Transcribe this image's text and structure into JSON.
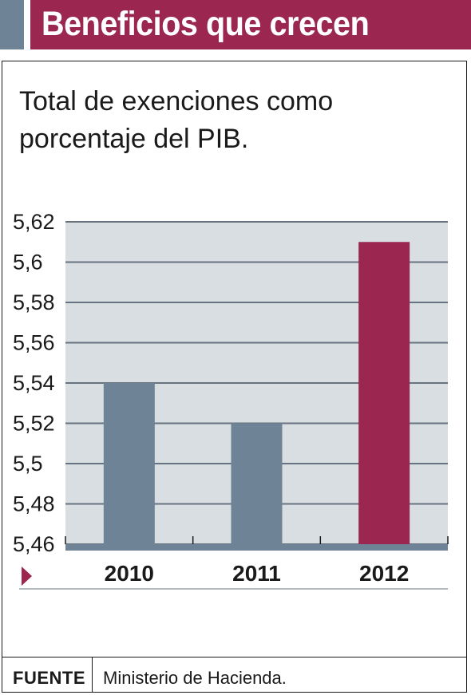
{
  "header": {
    "title": "Beneficios que crecen",
    "accent_color": "#6e8396",
    "brand_color": "#9b2650"
  },
  "subtitle": "Total de exenciones como porcentaje del PIB.",
  "chart_data": {
    "type": "bar",
    "title": "Total de exenciones como porcentaje del PIB.",
    "categories": [
      "2010",
      "2011",
      "2012"
    ],
    "values": [
      5.54,
      5.52,
      5.61
    ],
    "ylim": [
      5.46,
      5.62
    ],
    "yticks": [
      "5,46",
      "5,48",
      "5,5",
      "5,52",
      "5,54",
      "5,56",
      "5,58",
      "5,6",
      "5,62"
    ],
    "ytick_values": [
      5.46,
      5.48,
      5.5,
      5.52,
      5.54,
      5.56,
      5.58,
      5.6,
      5.62
    ],
    "bar_colors": [
      "#6e8396",
      "#6e8396",
      "#9b2650"
    ],
    "plot_background": "#d9dee3",
    "grid": true,
    "legend": "none"
  },
  "source": {
    "label": "FUENTE",
    "text": "Ministerio de Hacienda."
  }
}
